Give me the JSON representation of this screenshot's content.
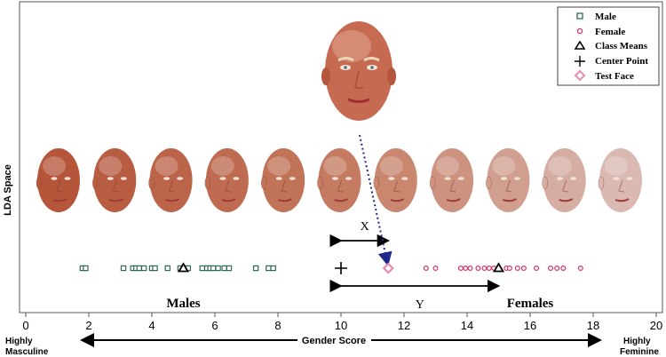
{
  "chart_data": {
    "type": "scatter",
    "ylabel": "LDA Space",
    "xlabel": "Gender Score",
    "x_axis": {
      "min": 0,
      "max": 20,
      "ticks": [
        0,
        2,
        4,
        6,
        8,
        10,
        12,
        14,
        16,
        18,
        20
      ],
      "left_end_label_line1": "Highly",
      "left_end_label_line2": "Masculine",
      "right_end_label_line1": "Highly",
      "right_end_label_line2": "Feminine"
    },
    "legend": {
      "placement": "top-right",
      "items": [
        {
          "label": "Male",
          "marker": "square",
          "color": "#2e6b55"
        },
        {
          "label": "Female",
          "marker": "circle",
          "color": "#d4336a"
        },
        {
          "label": "Class Means",
          "marker": "triangle",
          "color": "#000000"
        },
        {
          "label": "Center Point",
          "marker": "plus",
          "color": "#000000"
        },
        {
          "label": "Test Face",
          "marker": "diamond",
          "color": "#e88ab0"
        }
      ]
    },
    "series": [
      {
        "name": "Male",
        "x": [
          1.8,
          1.9,
          3.1,
          3.4,
          3.5,
          3.6,
          3.75,
          4.0,
          4.1,
          4.5,
          4.9,
          5.05,
          5.15,
          5.6,
          5.75,
          5.85,
          5.95,
          6.1,
          6.3,
          6.45,
          7.3,
          7.7,
          7.85
        ]
      },
      {
        "name": "Female",
        "x": [
          12.7,
          13.0,
          13.8,
          13.95,
          14.1,
          14.35,
          14.55,
          14.7,
          14.85,
          15.0,
          15.25,
          15.35,
          15.6,
          15.8,
          16.2,
          16.65,
          16.85,
          17.05,
          17.6
        ]
      }
    ],
    "class_means": [
      5.0,
      15.0
    ],
    "center_point": 10.0,
    "test_face": 11.5,
    "annotations": {
      "x_label": "X",
      "y_label": "Y",
      "males_label": "Males",
      "females_label": "Females"
    },
    "face_strip": {
      "count": 11,
      "palette": [
        "#b5563a",
        "#b85d42",
        "#bb6449",
        "#be6b51",
        "#c17358",
        "#c47b62",
        "#c98770",
        "#cd9380",
        "#d19f90",
        "#d5ada2",
        "#dab9b2"
      ]
    }
  }
}
